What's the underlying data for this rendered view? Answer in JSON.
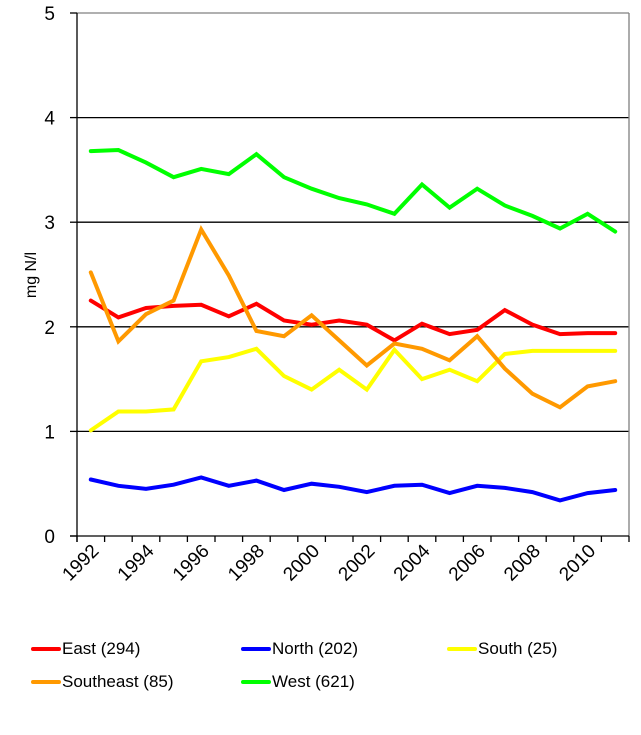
{
  "chart_data": {
    "type": "line",
    "title": "",
    "xlabel": "",
    "ylabel": "mg N/l",
    "ylim": [
      0,
      5
    ],
    "yticks": [
      "0",
      "1",
      "2",
      "3",
      "4",
      "5"
    ],
    "grid": true,
    "legend_position": "bottom",
    "x": [
      "1992",
      "1993",
      "1994",
      "1995",
      "1996",
      "1997",
      "1998",
      "1999",
      "2000",
      "2001",
      "2002",
      "2003",
      "2004",
      "2005",
      "2006",
      "2007",
      "2008",
      "2009",
      "2010",
      "2011"
    ],
    "xtick_labels": [
      "1992",
      "1994",
      "1996",
      "1998",
      "2000",
      "2002",
      "2004",
      "2006",
      "2008",
      "2010"
    ],
    "series": [
      {
        "name": "East (294)",
        "color": "#ff0000",
        "values": [
          2.25,
          2.09,
          2.18,
          2.2,
          2.21,
          2.1,
          2.22,
          2.06,
          2.02,
          2.06,
          2.02,
          1.87,
          2.03,
          1.93,
          1.97,
          2.16,
          2.02,
          1.93,
          1.94,
          1.94
        ]
      },
      {
        "name": "North (202)",
        "color": "#0000ff",
        "values": [
          0.54,
          0.48,
          0.45,
          0.49,
          0.56,
          0.48,
          0.53,
          0.44,
          0.5,
          0.47,
          0.42,
          0.48,
          0.49,
          0.41,
          0.48,
          0.46,
          0.42,
          0.34,
          0.41,
          0.44
        ]
      },
      {
        "name": "South (25)",
        "color": "#ffff00",
        "values": [
          1.01,
          1.19,
          1.19,
          1.21,
          1.67,
          1.71,
          1.79,
          1.53,
          1.4,
          1.59,
          1.4,
          1.78,
          1.5,
          1.59,
          1.48,
          1.74,
          1.77,
          1.77,
          1.77,
          1.77
        ]
      },
      {
        "name": "Southeast (85)",
        "color": "#ff9900",
        "values": [
          2.52,
          1.86,
          2.12,
          2.25,
          2.93,
          2.49,
          1.96,
          1.91,
          2.11,
          1.87,
          1.63,
          1.84,
          1.79,
          1.68,
          1.91,
          1.6,
          1.36,
          1.23,
          1.43,
          1.48
        ]
      },
      {
        "name": "West (621)",
        "color": "#00ff00",
        "values": [
          3.68,
          3.69,
          3.57,
          3.43,
          3.51,
          3.46,
          3.65,
          3.43,
          3.32,
          3.23,
          3.17,
          3.08,
          3.36,
          3.14,
          3.32,
          3.16,
          3.06,
          2.94,
          3.08,
          2.91
        ]
      }
    ]
  }
}
